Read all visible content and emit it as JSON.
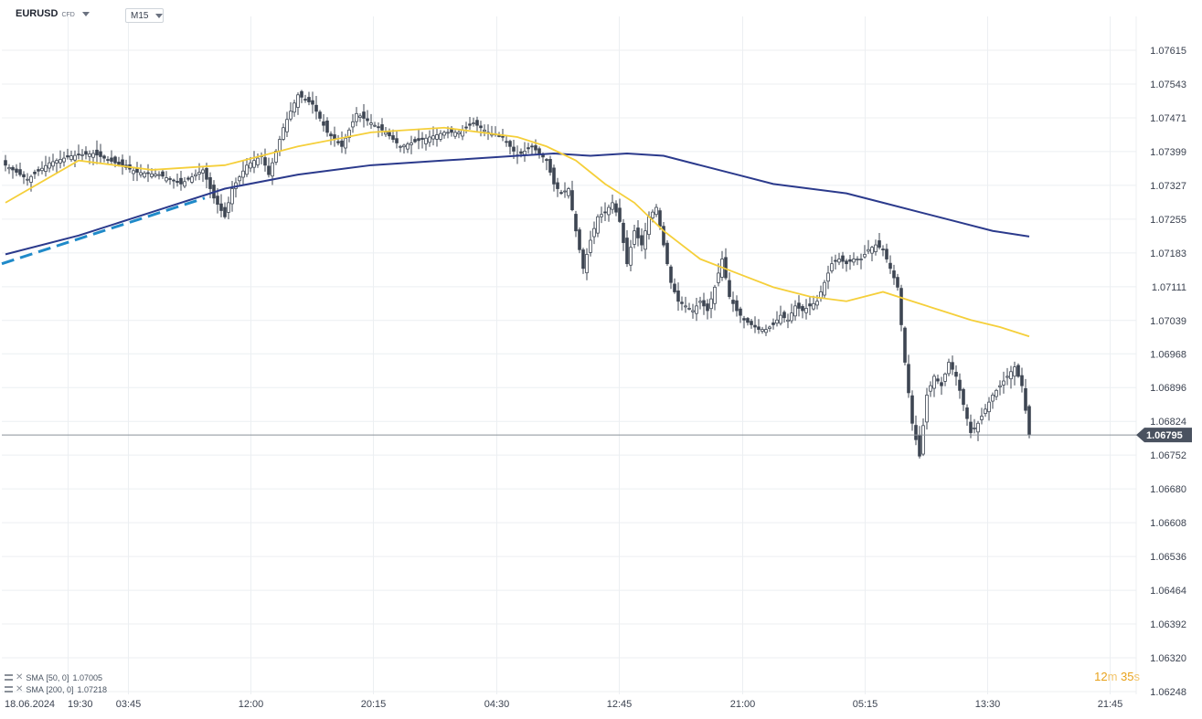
{
  "header": {
    "symbol": "EURUSD",
    "symbol_type": "CFD",
    "timeframe": "M15"
  },
  "legend": [
    {
      "name": "SMA",
      "params": "[50, 0]",
      "value": "1.07005",
      "color": "#f5cf3a"
    },
    {
      "name": "SMA",
      "params": "[200, 0]",
      "value": "1.07218",
      "color": "#2b3a8c"
    }
  ],
  "timer": {
    "minutes": "12",
    "minutes_unit": "m",
    "seconds": "35",
    "seconds_unit": "s"
  },
  "colors": {
    "candle": "#3d4552",
    "grid": "#eceff2",
    "price_line": "#8a9099",
    "sma50": "#f5cf3a",
    "sma200": "#2b3a8c",
    "trendline": "#1f8ac9",
    "price_tag_bg": "#4a5260"
  },
  "chart_data": {
    "type": "candlestick",
    "instrument": "EURUSD",
    "timeframe": "M15",
    "ylim": [
      1.06248,
      1.0765
    ],
    "price_ticks": [
      "1.07615",
      "1.07543",
      "1.07471",
      "1.07399",
      "1.07327",
      "1.07255",
      "1.07183",
      "1.07111",
      "1.07039",
      "1.06968",
      "1.06896",
      "1.06824",
      "1.06752",
      "1.06680",
      "1.06608",
      "1.06536",
      "1.06464",
      "1.06392",
      "1.06320",
      "1.06248"
    ],
    "time_ticks": [
      "18.06.2024",
      "19:30",
      "03:45",
      "12:00",
      "20:15",
      "04:30",
      "12:45",
      "21:00",
      "05:15",
      "13:30",
      "21:45"
    ],
    "current_price": "1.06795",
    "close_path": [
      [
        0,
        1.0737
      ],
      [
        6,
        1.0734
      ],
      [
        12,
        1.07375
      ],
      [
        18,
        1.0739
      ],
      [
        24,
        1.07395
      ],
      [
        30,
        1.07375
      ],
      [
        36,
        1.07355
      ],
      [
        42,
        1.0735
      ],
      [
        48,
        1.0733
      ],
      [
        54,
        1.0736
      ],
      [
        57,
        1.073
      ],
      [
        60,
        1.0726
      ],
      [
        62,
        1.0732
      ],
      [
        66,
        1.0737
      ],
      [
        70,
        1.0739
      ],
      [
        72,
        1.0735
      ],
      [
        76,
        1.0745
      ],
      [
        80,
        1.0752
      ],
      [
        84,
        1.075
      ],
      [
        88,
        1.0744
      ],
      [
        92,
        1.0741
      ],
      [
        96,
        1.0748
      ],
      [
        100,
        1.0746
      ],
      [
        104,
        1.0744
      ],
      [
        108,
        1.0741
      ],
      [
        112,
        1.0742
      ],
      [
        116,
        1.0743
      ],
      [
        120,
        1.0744
      ],
      [
        124,
        1.0744
      ],
      [
        128,
        1.0746
      ],
      [
        132,
        1.0744
      ],
      [
        136,
        1.0743
      ],
      [
        140,
        1.0739
      ],
      [
        144,
        1.0741
      ],
      [
        148,
        1.0738
      ],
      [
        150,
        1.0733
      ],
      [
        152,
        1.0731
      ],
      [
        154,
        1.0732
      ],
      [
        156,
        1.0723
      ],
      [
        158,
        1.0715
      ],
      [
        160,
        1.0721
      ],
      [
        162,
        1.0726
      ],
      [
        164,
        1.0727
      ],
      [
        166,
        1.0729
      ],
      [
        168,
        1.0725
      ],
      [
        170,
        1.0716
      ],
      [
        172,
        1.0723
      ],
      [
        174,
        1.072
      ],
      [
        176,
        1.0726
      ],
      [
        178,
        1.0728
      ],
      [
        180,
        1.072
      ],
      [
        182,
        1.0712
      ],
      [
        184,
        1.0708
      ],
      [
        186,
        1.0707
      ],
      [
        188,
        1.0706
      ],
      [
        190,
        1.0708
      ],
      [
        192,
        1.0706
      ],
      [
        194,
        1.0711
      ],
      [
        196,
        1.0717
      ],
      [
        198,
        1.0709
      ],
      [
        200,
        1.0706
      ],
      [
        202,
        1.0704
      ],
      [
        204,
        1.0703
      ],
      [
        206,
        1.0702
      ],
      [
        208,
        1.0702
      ],
      [
        210,
        1.0703
      ],
      [
        212,
        1.0705
      ],
      [
        214,
        1.0704
      ],
      [
        216,
        1.0707
      ],
      [
        218,
        1.0706
      ],
      [
        220,
        1.0707
      ],
      [
        222,
        1.0708
      ],
      [
        224,
        1.0712
      ],
      [
        226,
        1.0716
      ],
      [
        228,
        1.0717
      ],
      [
        230,
        1.0716
      ],
      [
        232,
        1.0717
      ],
      [
        234,
        1.0717
      ],
      [
        236,
        1.0719
      ],
      [
        238,
        1.072
      ],
      [
        240,
        1.0719
      ],
      [
        242,
        1.0715
      ],
      [
        244,
        1.0711
      ],
      [
        246,
        1.0695
      ],
      [
        248,
        1.0682
      ],
      [
        250,
        1.0675
      ],
      [
        252,
        1.0688
      ],
      [
        254,
        1.0692
      ],
      [
        256,
        1.069
      ],
      [
        258,
        1.0695
      ],
      [
        260,
        1.0692
      ],
      [
        262,
        1.0686
      ],
      [
        264,
        1.068
      ],
      [
        266,
        1.0682
      ],
      [
        268,
        1.0685
      ],
      [
        270,
        1.0688
      ],
      [
        272,
        1.069
      ],
      [
        274,
        1.0692
      ],
      [
        276,
        1.0694
      ],
      [
        278,
        1.069
      ],
      [
        280,
        1.06795
      ]
    ],
    "sma50_path": [
      [
        0,
        1.0729
      ],
      [
        20,
        1.0738
      ],
      [
        40,
        1.0736
      ],
      [
        60,
        1.0737
      ],
      [
        80,
        1.0741
      ],
      [
        100,
        1.0744
      ],
      [
        120,
        1.0745
      ],
      [
        140,
        1.0743
      ],
      [
        148,
        1.0741
      ],
      [
        156,
        1.0738
      ],
      [
        164,
        1.0733
      ],
      [
        172,
        1.0729
      ],
      [
        180,
        1.0723
      ],
      [
        190,
        1.0717
      ],
      [
        200,
        1.0714
      ],
      [
        210,
        1.0711
      ],
      [
        220,
        1.0709
      ],
      [
        230,
        1.0708
      ],
      [
        240,
        1.071
      ],
      [
        248,
        1.0708
      ],
      [
        256,
        1.0706
      ],
      [
        264,
        1.0704
      ],
      [
        272,
        1.07025
      ],
      [
        280,
        1.07005
      ]
    ],
    "sma200_path": [
      [
        0,
        1.0718
      ],
      [
        20,
        1.0722
      ],
      [
        40,
        1.0727
      ],
      [
        60,
        1.0732
      ],
      [
        80,
        1.0735
      ],
      [
        100,
        1.0737
      ],
      [
        120,
        1.0738
      ],
      [
        140,
        1.0739
      ],
      [
        150,
        1.07395
      ],
      [
        160,
        1.0739
      ],
      [
        170,
        1.07395
      ],
      [
        180,
        1.0739
      ],
      [
        190,
        1.0737
      ],
      [
        200,
        1.0735
      ],
      [
        210,
        1.0733
      ],
      [
        220,
        1.0732
      ],
      [
        230,
        1.0731
      ],
      [
        240,
        1.0729
      ],
      [
        250,
        1.0727
      ],
      [
        260,
        1.0725
      ],
      [
        270,
        1.0723
      ],
      [
        280,
        1.07218
      ]
    ],
    "trendline": {
      "style": "dashed",
      "from": [
        0,
        1.0716
      ],
      "to": [
        54,
        1.073
      ]
    }
  }
}
